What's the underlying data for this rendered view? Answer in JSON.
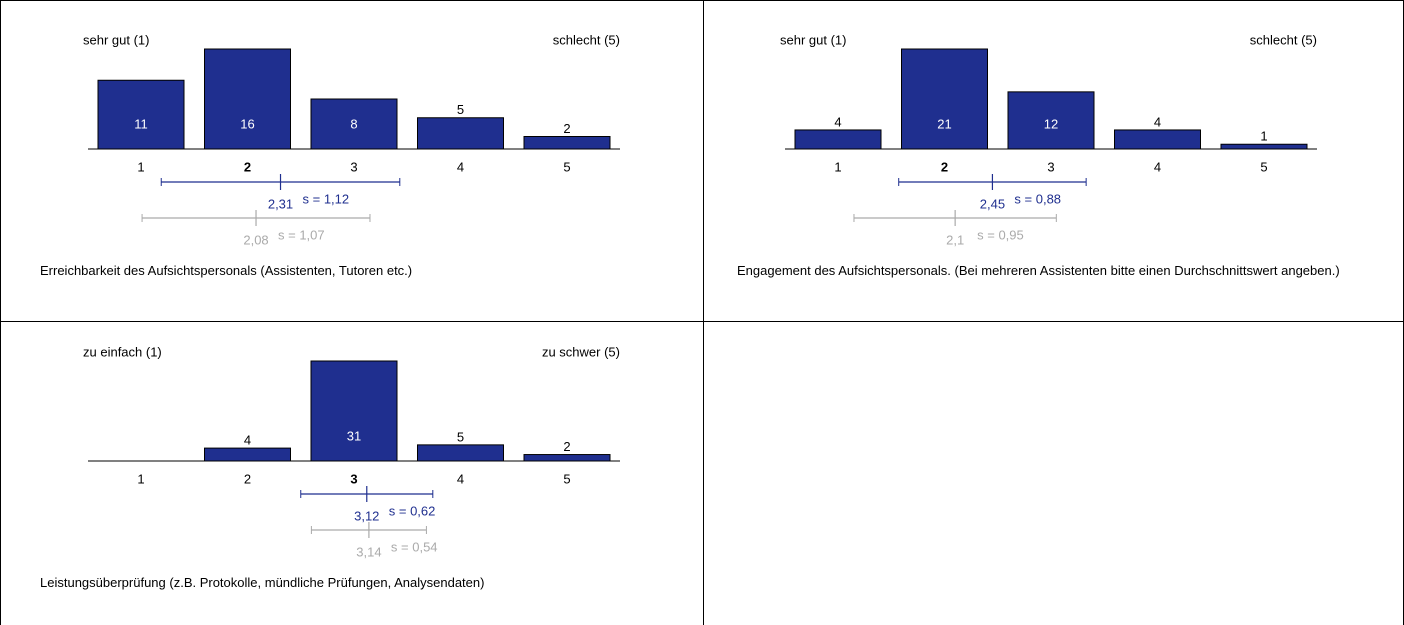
{
  "chart_data": [
    {
      "type": "bar",
      "left_label": "sehr gut (1)",
      "right_label": "schlecht (5)",
      "categories": [
        "1",
        "2",
        "3",
        "4",
        "5"
      ],
      "values": [
        11,
        16,
        8,
        5,
        2
      ],
      "color": "#1f2f8f",
      "ylim": [
        0,
        16
      ],
      "median": 2,
      "mean": {
        "value": 2.31,
        "label": "2,31"
      },
      "sd": {
        "value": 1.12,
        "label": "s = 1,12"
      },
      "comparison_mean": {
        "value": 2.08,
        "label": "2,08"
      },
      "comparison_sd": {
        "value": 1.07,
        "label": "s = 1,07"
      },
      "comparison_color": "#aaaaaa",
      "question": "Erreichbarkeit des Aufsichtspersonals (Assistenten, Tutoren etc.)"
    },
    {
      "type": "bar",
      "left_label": "sehr gut (1)",
      "right_label": "schlecht (5)",
      "categories": [
        "1",
        "2",
        "3",
        "4",
        "5"
      ],
      "values": [
        4,
        21,
        12,
        4,
        1
      ],
      "color": "#1f2f8f",
      "ylim": [
        0,
        21
      ],
      "median": 2,
      "mean": {
        "value": 2.45,
        "label": "2,45"
      },
      "sd": {
        "value": 0.88,
        "label": "s = 0,88"
      },
      "comparison_mean": {
        "value": 2.1,
        "label": "2,1"
      },
      "comparison_sd": {
        "value": 0.95,
        "label": "s = 0,95"
      },
      "comparison_color": "#aaaaaa",
      "question": "Engagement des Aufsichtspersonals. (Bei mehreren Assistenten bitte einen Durchschnittswert angeben.)"
    },
    {
      "type": "bar",
      "left_label": "zu einfach (1)",
      "right_label": "zu schwer (5)",
      "categories": [
        "1",
        "2",
        "3",
        "4",
        "5"
      ],
      "values": [
        0,
        4,
        31,
        5,
        2
      ],
      "value_labels": [
        null,
        "4",
        "31",
        "5",
        "2"
      ],
      "color": "#1f2f8f",
      "ylim": [
        0,
        31
      ],
      "median": 3,
      "mean": {
        "value": 3.12,
        "label": "3,12"
      },
      "sd": {
        "value": 0.62,
        "label": "s = 0,62"
      },
      "comparison_mean": {
        "value": 3.14,
        "label": "3,14"
      },
      "comparison_sd": {
        "value": 0.54,
        "label": "s = 0,54"
      },
      "comparison_color": "#aaaaaa",
      "question": "Leistungsüberprüfung (z.B. Protokolle, mündliche Prüfungen, Analysendaten)"
    }
  ]
}
